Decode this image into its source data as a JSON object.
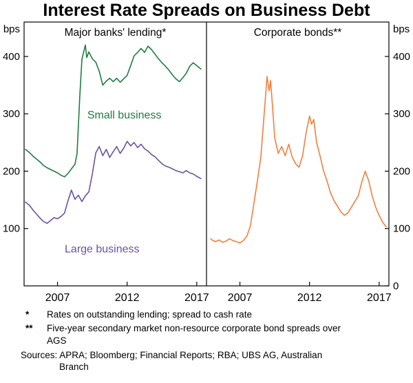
{
  "title": "Interest Rate Spreads on Business Debt",
  "axis_unit": "bps",
  "footnotes": [
    {
      "marker": "*",
      "text": "Rates on outstanding lending; spread to cash rate"
    },
    {
      "marker": "**",
      "text": "Five-year secondary market non-resource corporate bond spreads over AGS"
    }
  ],
  "sources": "Sources: APRA; Bloomberg; Financial Reports; RBA; UBS AG, Australian Branch",
  "chart_data": {
    "type": "line",
    "title": "Interest Rate Spreads on Business Debt",
    "ylabel": "bps",
    "ylim": [
      0,
      460
    ],
    "yticks_left": [
      400,
      300,
      200,
      100
    ],
    "yticks_right": [
      400,
      300,
      200,
      100,
      0
    ],
    "xlim": [
      2004.6,
      2017.7
    ],
    "xticks": [
      2007,
      2012,
      2017
    ],
    "grid": false,
    "legend_position": "in-plot-labels",
    "panels": [
      {
        "title": "Major banks' lending*",
        "series": [
          {
            "name": "Small business",
            "color": "#1c7c3f",
            "label": {
              "text": "Small business",
              "x": 2011.8,
              "y": 292
            },
            "points": [
              [
                2004.7,
                238
              ],
              [
                2005,
                232
              ],
              [
                2005.25,
                226
              ],
              [
                2005.5,
                221
              ],
              [
                2005.75,
                216
              ],
              [
                2006,
                210
              ],
              [
                2006.25,
                206
              ],
              [
                2006.5,
                203
              ],
              [
                2006.75,
                200
              ],
              [
                2007,
                197
              ],
              [
                2007.25,
                193
              ],
              [
                2007.5,
                190
              ],
              [
                2007.75,
                196
              ],
              [
                2008,
                204
              ],
              [
                2008.25,
                212
              ],
              [
                2008.4,
                230
              ],
              [
                2008.6,
                330
              ],
              [
                2008.75,
                395
              ],
              [
                2009,
                420
              ],
              [
                2009.1,
                398
              ],
              [
                2009.25,
                408
              ],
              [
                2009.5,
                396
              ],
              [
                2009.75,
                390
              ],
              [
                2010,
                374
              ],
              [
                2010.25,
                350
              ],
              [
                2010.5,
                357
              ],
              [
                2010.75,
                362
              ],
              [
                2011,
                356
              ],
              [
                2011.25,
                362
              ],
              [
                2011.5,
                355
              ],
              [
                2011.75,
                361
              ],
              [
                2012,
                367
              ],
              [
                2012.25,
                384
              ],
              [
                2012.5,
                401
              ],
              [
                2012.75,
                407
              ],
              [
                2013,
                414
              ],
              [
                2013.25,
                407
              ],
              [
                2013.5,
                418
              ],
              [
                2013.75,
                412
              ],
              [
                2014,
                404
              ],
              [
                2014.25,
                396
              ],
              [
                2014.5,
                389
              ],
              [
                2014.75,
                383
              ],
              [
                2015,
                376
              ],
              [
                2015.25,
                368
              ],
              [
                2015.5,
                361
              ],
              [
                2015.75,
                356
              ],
              [
                2016,
                363
              ],
              [
                2016.25,
                371
              ],
              [
                2016.5,
                383
              ],
              [
                2016.75,
                389
              ],
              [
                2017,
                384
              ],
              [
                2017.3,
                378
              ]
            ]
          },
          {
            "name": "Large business",
            "color": "#6a51a3",
            "label": {
              "text": "Large business",
              "x": 2010.2,
              "y": 58
            },
            "points": [
              [
                2004.7,
                146
              ],
              [
                2005,
                140
              ],
              [
                2005.25,
                132
              ],
              [
                2005.5,
                125
              ],
              [
                2005.75,
                118
              ],
              [
                2006,
                112
              ],
              [
                2006.25,
                109
              ],
              [
                2006.5,
                114
              ],
              [
                2006.75,
                119
              ],
              [
                2007,
                117
              ],
              [
                2007.25,
                121
              ],
              [
                2007.5,
                127
              ],
              [
                2007.75,
                148
              ],
              [
                2008,
                167
              ],
              [
                2008.25,
                151
              ],
              [
                2008.5,
                158
              ],
              [
                2008.75,
                147
              ],
              [
                2009,
                157
              ],
              [
                2009.25,
                164
              ],
              [
                2009.5,
                195
              ],
              [
                2009.75,
                232
              ],
              [
                2010,
                243
              ],
              [
                2010.25,
                227
              ],
              [
                2010.5,
                238
              ],
              [
                2010.75,
                224
              ],
              [
                2011,
                234
              ],
              [
                2011.25,
                243
              ],
              [
                2011.5,
                231
              ],
              [
                2011.75,
                240
              ],
              [
                2012,
                252
              ],
              [
                2012.25,
                244
              ],
              [
                2012.5,
                250
              ],
              [
                2012.75,
                241
              ],
              [
                2013,
                247
              ],
              [
                2013.25,
                239
              ],
              [
                2013.5,
                235
              ],
              [
                2013.75,
                229
              ],
              [
                2014,
                225
              ],
              [
                2014.25,
                219
              ],
              [
                2014.5,
                213
              ],
              [
                2014.75,
                209
              ],
              [
                2015,
                207
              ],
              [
                2015.25,
                204
              ],
              [
                2015.5,
                201
              ],
              [
                2015.75,
                199
              ],
              [
                2016,
                197
              ],
              [
                2016.25,
                201
              ],
              [
                2016.5,
                197
              ],
              [
                2016.75,
                195
              ],
              [
                2017,
                191
              ],
              [
                2017.3,
                187
              ]
            ]
          }
        ]
      },
      {
        "title": "Corporate bonds**",
        "series": [
          {
            "name": "Corporate bonds",
            "color": "#f57d3c",
            "label": null,
            "points": [
              [
                2004.9,
                82
              ],
              [
                2005,
                80
              ],
              [
                2005.25,
                77
              ],
              [
                2005.5,
                80
              ],
              [
                2005.75,
                76
              ],
              [
                2006,
                78
              ],
              [
                2006.25,
                82
              ],
              [
                2006.5,
                79
              ],
              [
                2006.75,
                77
              ],
              [
                2007,
                75
              ],
              [
                2007.25,
                79
              ],
              [
                2007.5,
                87
              ],
              [
                2007.75,
                104
              ],
              [
                2008,
                143
              ],
              [
                2008.25,
                182
              ],
              [
                2008.5,
                224
              ],
              [
                2008.75,
                303
              ],
              [
                2008.95,
                365
              ],
              [
                2009.1,
                340
              ],
              [
                2009.2,
                358
              ],
              [
                2009.35,
                310
              ],
              [
                2009.5,
                258
              ],
              [
                2009.75,
                231
              ],
              [
                2010,
                243
              ],
              [
                2010.25,
                227
              ],
              [
                2010.5,
                247
              ],
              [
                2010.75,
                225
              ],
              [
                2011,
                213
              ],
              [
                2011.25,
                207
              ],
              [
                2011.5,
                227
              ],
              [
                2011.75,
                266
              ],
              [
                2012,
                296
              ],
              [
                2012.15,
                282
              ],
              [
                2012.3,
                290
              ],
              [
                2012.5,
                251
              ],
              [
                2012.75,
                227
              ],
              [
                2013,
                201
              ],
              [
                2013.25,
                183
              ],
              [
                2013.5,
                163
              ],
              [
                2013.75,
                149
              ],
              [
                2014,
                139
              ],
              [
                2014.25,
                129
              ],
              [
                2014.5,
                123
              ],
              [
                2014.75,
                127
              ],
              [
                2015,
                137
              ],
              [
                2015.25,
                147
              ],
              [
                2015.5,
                157
              ],
              [
                2015.75,
                181
              ],
              [
                2016,
                200
              ],
              [
                2016.25,
                183
              ],
              [
                2016.5,
                157
              ],
              [
                2016.75,
                137
              ],
              [
                2017,
                123
              ],
              [
                2017.25,
                111
              ],
              [
                2017.5,
                103
              ]
            ]
          }
        ]
      }
    ]
  }
}
